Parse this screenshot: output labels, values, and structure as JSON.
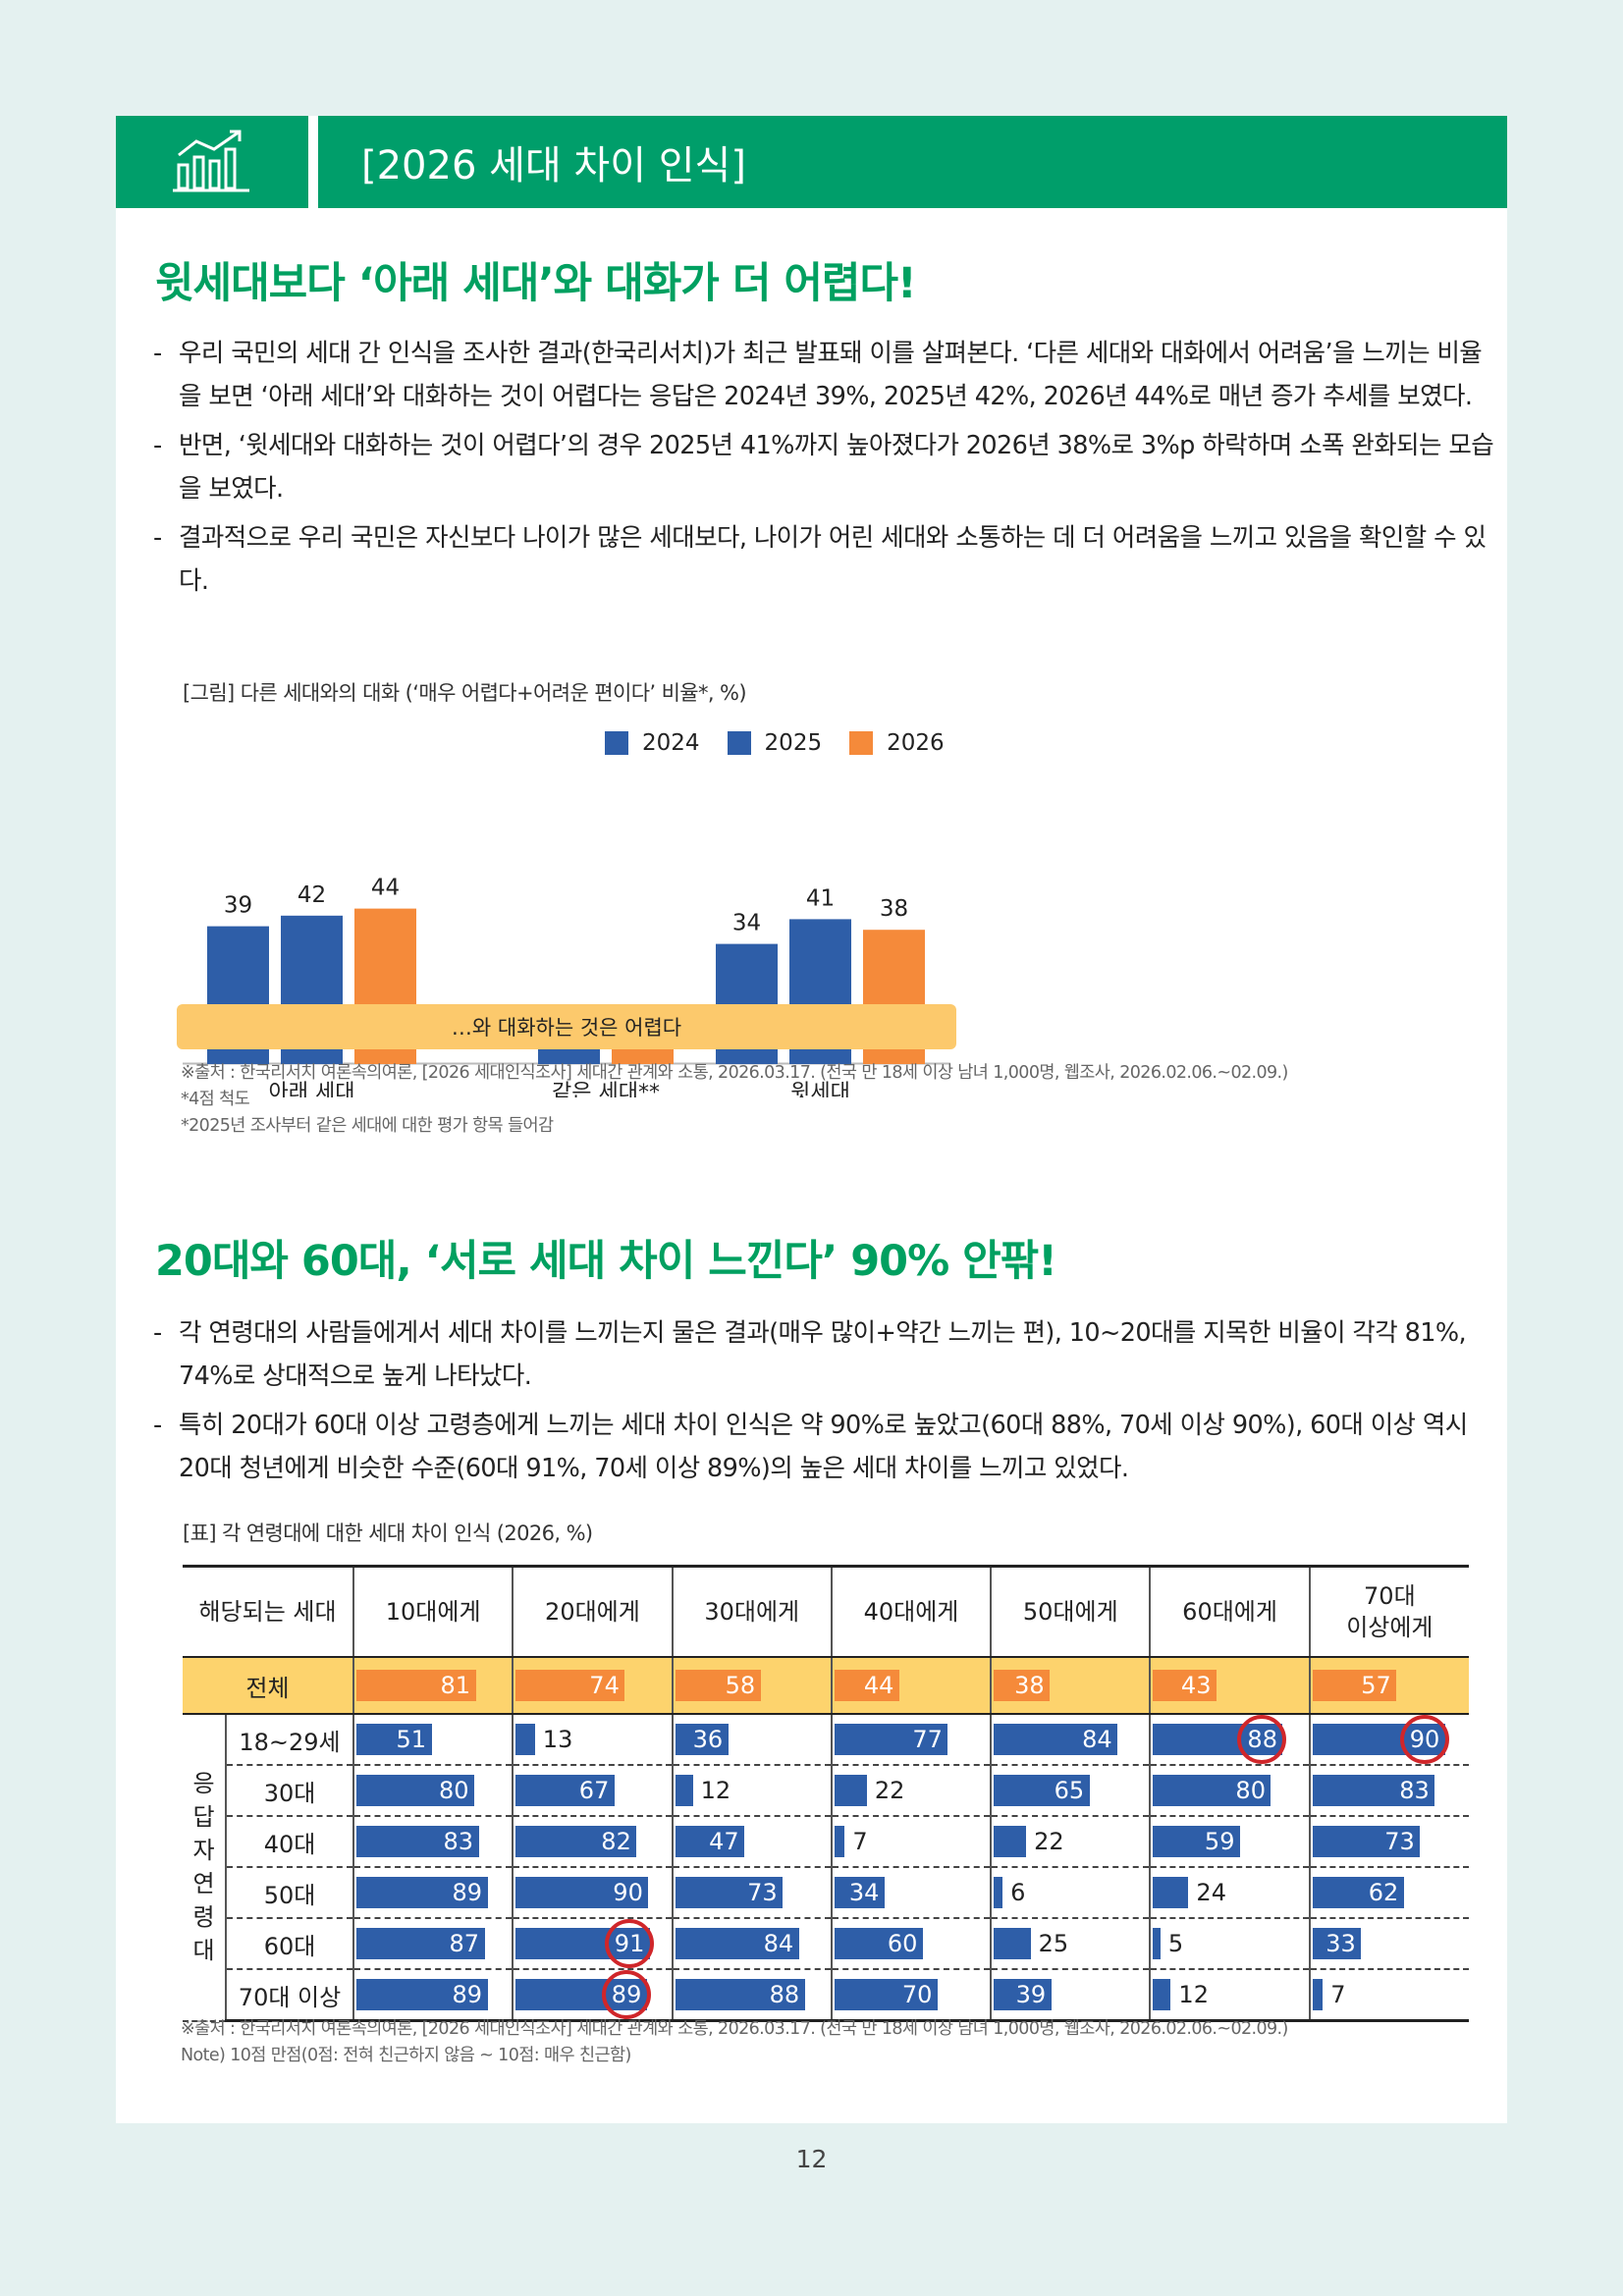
{
  "header": {
    "title": "[2026 세대 차이 인식]",
    "icon": "chart-growth-icon"
  },
  "section1": {
    "heading": "윗세대보다 ‘아래 세대’와 대화가 더 어렵다!",
    "bullets": [
      "우리 국민의 세대 간 인식을 조사한 결과(한국리서치)가 최근 발표돼 이를 살펴본다. ‘다른 세대와 대화에서 어려움’을 느끼는 비율을 보면 ‘아래 세대’와 대화하는 것이 어렵다는 응답은 2024년 39%, 2025년 42%, 2026년 44%로 매년 증가 추세를 보였다.",
      "반면, ‘윗세대와 대화하는 것이 어렵다’의 경우 2025년 41%까지 높아졌다가 2026년 38%로 3%p 하락하며 소폭 완화되는 모습을 보였다.",
      "결과적으로 우리 국민은 자신보다 나이가 많은 세대보다, 나이가 어린 세대와 소통하는 데 더 어려움을 느끼고 있음을 확인할 수 있다."
    ],
    "caption": "[그림] 다른 세대와의 대화 (‘매우 어렵다+어려운 편이다’ 비율*, %)",
    "pill": "…와 대화하는 것은 어렵다",
    "notes": [
      "※출처 : 한국리서치 여론속의여론, [2026 세대인식조사] 세대간 관계와 소통, 2026.03.17. (전국 만 18세 이상 남녀 1,000명, 웹조사, 2026.02.06.~02.09.)",
      "*4점 척도",
      "*2025년 조사부터 같은 세대에 대한 평가 항목 들어감"
    ]
  },
  "chart_data": {
    "type": "bar",
    "categories": [
      "아래 세대",
      "같은 세대**",
      "윗세대"
    ],
    "series": [
      {
        "name": "2024",
        "color": "#2e5ea8",
        "values": [
          39,
          null,
          34
        ]
      },
      {
        "name": "2025",
        "color": "#2e5ea8",
        "values": [
          42,
          8,
          41
        ]
      },
      {
        "name": "2026",
        "color": "#f58a3a",
        "values": [
          44,
          8,
          38
        ]
      }
    ],
    "ylim": [
      0,
      50
    ],
    "legend": "top-right"
  },
  "section2": {
    "heading": "20대와 60대, ‘서로 세대 차이 느낀다’ 90% 안팎!",
    "bullets": [
      "각 연령대의 사람들에게서 세대 차이를 느끼는지 물은 결과(매우 많이+약간 느끼는 편), 10~20대를 지목한 비율이 각각 81%, 74%로 상대적으로 높게 나타났다.",
      "특히 20대가 60대 이상 고령층에게 느끼는 세대 차이 인식은 약 90%로 높았고(60대 88%, 70세 이상 90%), 60대 이상 역시 20대 청년에게 비슷한 수준(60대 91%, 70세 이상 89%)의 높은 세대 차이를 느끼고 있었다."
    ],
    "caption": "[표] 각 연령대에 대한 세대 차이 인식 (2026, %)",
    "table": {
      "corner": "해당되는 세대",
      "group_label": "응답자연령대",
      "columns": [
        "10대에게",
        "20대에게",
        "30대에게",
        "40대에게",
        "50대에게",
        "60대에게",
        "70대\n이상에게"
      ],
      "total": {
        "label": "전체",
        "values": [
          81,
          74,
          58,
          44,
          38,
          43,
          57
        ]
      },
      "rows": [
        {
          "label": "18~29세",
          "values": [
            51,
            13,
            36,
            77,
            84,
            88,
            90
          ],
          "highlight": [
            5,
            6
          ]
        },
        {
          "label": "30대",
          "values": [
            80,
            67,
            12,
            22,
            65,
            80,
            83
          ],
          "highlight": []
        },
        {
          "label": "40대",
          "values": [
            83,
            82,
            47,
            7,
            22,
            59,
            73
          ],
          "highlight": []
        },
        {
          "label": "50대",
          "values": [
            89,
            90,
            73,
            34,
            6,
            24,
            62
          ],
          "highlight": []
        },
        {
          "label": "60대",
          "values": [
            87,
            91,
            84,
            60,
            25,
            5,
            33
          ],
          "highlight": [
            1
          ]
        },
        {
          "label": "70대 이상",
          "values": [
            89,
            89,
            88,
            70,
            39,
            12,
            7
          ],
          "highlight": [
            1
          ]
        }
      ]
    },
    "notes": [
      "※출처 : 한국리서치 여론속의여론, [2026 세대인식조사] 세대간 관계와 소통, 2026.03.17. (전국 만 18세 이상 남녀 1,000명, 웹조사, 2026.02.06.~02.09.)",
      "Note) 10점 만점(0점: 전혀 친근하지 않음 ~ 10점: 매우 친근함)"
    ]
  },
  "page_number": "12"
}
